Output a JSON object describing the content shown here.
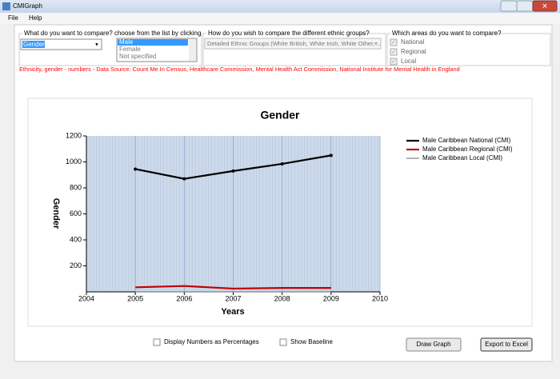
{
  "window": {
    "title": "CMIGraph"
  },
  "menu": [
    "File",
    "Help"
  ],
  "compare_group": {
    "label": "What do you want to compare? choose from the list by clicking",
    "combo": "Gender",
    "list": [
      "Male",
      "Female",
      "Not specified"
    ]
  },
  "ethnic_group": {
    "label": "How do you wish to compare the different ethnic groups?",
    "combo": "Detailed Ethnic Groups (White British, White Irish, White Other, ..."
  },
  "areas_group": {
    "label": "Which areas do you want to compare?",
    "options": [
      "National",
      "Regional",
      "Local"
    ]
  },
  "source": "Ethnicity, gender - numbers - Data Source: Count Me In Census, Healthcare Commission, Mental Health Act Commission, National Institute for Mental Health in England",
  "chart_data": {
    "type": "line",
    "title": "Gender",
    "x_label": "Years",
    "y_label": "Gender",
    "x": [
      2005,
      2006,
      2007,
      2008,
      2009
    ],
    "xlim": [
      2004,
      2010
    ],
    "xticks": [
      2004,
      2005,
      2006,
      2007,
      2008,
      2009,
      2010
    ],
    "ylim": [
      0,
      1200
    ],
    "yticks": [
      200,
      400,
      600,
      800,
      1000,
      1200
    ],
    "grid": true,
    "legend": "right",
    "series": [
      {
        "name": "Male Caribbean National (CMI)",
        "color": "#000000",
        "values": [
          945,
          870,
          930,
          985,
          1050
        ]
      },
      {
        "name": "Male Caribbean Regional (CMI)",
        "color": "#c00000",
        "values": [
          35,
          45,
          25,
          30,
          30
        ]
      },
      {
        "name": "Male Caribbean Local (CMI)",
        "color": "#808080",
        "values": [
          0,
          0,
          0,
          0,
          0
        ]
      }
    ]
  },
  "options": [
    "Display Numbers as Percentages",
    "Show Baseline"
  ],
  "buttons": [
    "Draw Graph",
    "Export to Excel"
  ]
}
